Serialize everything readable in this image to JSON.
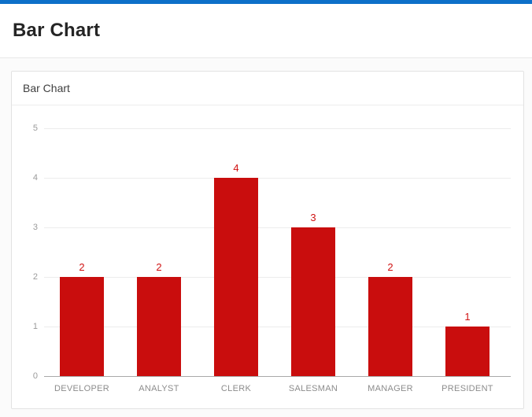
{
  "page": {
    "title": "Bar Chart"
  },
  "card": {
    "title": "Bar Chart"
  },
  "colors": {
    "accent_bar": "#0d70c9",
    "bar_fill": "#c90d0d",
    "data_label": "#d01212",
    "gridline": "#ececec",
    "axis_baseline": "#a9a9a9",
    "axis_text": "#8c8c8c"
  },
  "chart_data": {
    "type": "bar",
    "title": "Bar Chart",
    "categories": [
      "DEVELOPER",
      "ANALYST",
      "CLERK",
      "SALESMAN",
      "MANAGER",
      "PRESIDENT"
    ],
    "values": [
      2,
      2,
      4,
      3,
      2,
      1
    ],
    "data_labels": [
      2,
      2,
      4,
      3,
      2,
      1
    ],
    "xlabel": "",
    "ylabel": "",
    "ylim": [
      0,
      5
    ],
    "y_ticks": [
      0,
      1,
      2,
      3,
      4,
      5
    ],
    "grid": true,
    "legend": "none",
    "bar_color": "#c90d0d",
    "data_label_color": "#d01212"
  }
}
